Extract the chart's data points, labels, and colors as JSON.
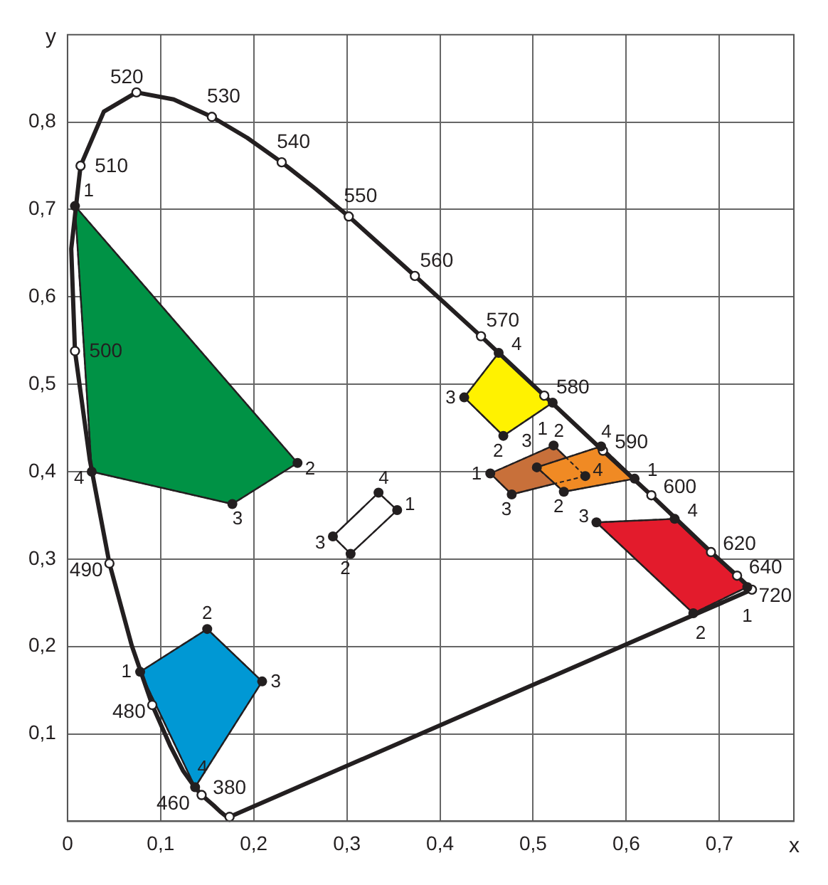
{
  "chart_data": {
    "type": "line",
    "xlabel": "x",
    "ylabel": "y",
    "xlim": [
      0,
      0.78
    ],
    "ylim": [
      0,
      0.9
    ],
    "xticks": [
      0,
      {
        "value": 0.1,
        "label": "0,1"
      },
      {
        "value": 0.2,
        "label": "0,2"
      },
      {
        "value": 0.3,
        "label": "0,3"
      },
      {
        "value": 0.4,
        "label": "0,4"
      },
      {
        "value": 0.5,
        "label": "0,5"
      },
      {
        "value": 0.6,
        "label": "0,6"
      },
      {
        "value": 0.7,
        "label": "0,7"
      }
    ],
    "yticks": [
      {
        "value": 0.1,
        "label": "0,1"
      },
      {
        "value": 0.2,
        "label": "0,2"
      },
      {
        "value": 0.3,
        "label": "0,3"
      },
      {
        "value": 0.4,
        "label": "0,4"
      },
      {
        "value": 0.5,
        "label": "0,5"
      },
      {
        "value": 0.6,
        "label": "0,6"
      },
      {
        "value": 0.7,
        "label": "0,7"
      },
      {
        "value": 0.8,
        "label": "0,8"
      }
    ],
    "grid": true,
    "legend": false,
    "series": [
      {
        "type": "area",
        "color": "#009245",
        "marker": "circle",
        "x": [
          0.008,
          0.247,
          0.177,
          0.026
        ],
        "values": [
          0.704,
          0.41,
          0.363,
          0.4
        ]
      },
      {
        "type": "area",
        "color": "#0098d4",
        "marker": "circle",
        "x": [
          0.078,
          0.15,
          0.209,
          0.137
        ],
        "values": [
          0.171,
          0.22,
          0.16,
          0.039
        ]
      },
      {
        "type": "area",
        "color": "#ffffff",
        "marker": "circle",
        "x": [
          0.354,
          0.304,
          0.285,
          0.334
        ],
        "values": [
          0.356,
          0.306,
          0.326,
          0.376
        ]
      },
      {
        "type": "area",
        "color": "#fff200",
        "marker": "circle",
        "x": [
          0.521,
          0.468,
          0.426,
          0.463
        ],
        "values": [
          0.479,
          0.441,
          0.485,
          0.536
        ]
      },
      {
        "type": "area",
        "color": "#c8703a",
        "marker": "circle",
        "x": [
          0.454,
          0.522,
          0.556,
          0.477
        ],
        "values": [
          0.398,
          0.43,
          0.395,
          0.374
        ]
      },
      {
        "type": "area",
        "color": "#f08a24",
        "marker": "circle",
        "x": [
          0.609,
          0.533,
          0.504,
          0.573
        ],
        "values": [
          0.392,
          0.377,
          0.405,
          0.429
        ]
      },
      {
        "type": "area",
        "color": "#e31b2c",
        "marker": "circle",
        "x": [
          0.73,
          0.672,
          0.568,
          0.652
        ],
        "values": [
          0.268,
          0.238,
          0.342,
          0.346
        ]
      },
      {
        "type": "line",
        "color": "#231f20",
        "marker": "none",
        "line_style": "solid",
        "x": [
          0.174,
          0.171,
          0.164,
          0.157,
          0.144,
          0.136,
          0.124,
          0.11,
          0.091,
          0.069,
          0.045,
          0.024,
          0.008,
          0.004,
          0.014,
          0.039,
          0.074,
          0.114,
          0.155,
          0.193,
          0.23,
          0.266,
          0.302,
          0.373,
          0.444,
          0.512,
          0.575,
          0.627,
          0.691,
          0.719,
          0.735
        ],
        "values": [
          0.005,
          0.005,
          0.011,
          0.018,
          0.03,
          0.04,
          0.058,
          0.087,
          0.133,
          0.201,
          0.295,
          0.413,
          0.538,
          0.655,
          0.75,
          0.812,
          0.834,
          0.826,
          0.806,
          0.782,
          0.754,
          0.724,
          0.692,
          0.624,
          0.555,
          0.487,
          0.424,
          0.373,
          0.308,
          0.281,
          0.265
        ]
      },
      {
        "type": "line",
        "color": "#231f20",
        "marker": "none",
        "line_style": "solid",
        "x": [
          0.735,
          0.174
        ],
        "values": [
          0.265,
          0.005
        ]
      },
      {
        "type": "scatter",
        "color": "#ffffff",
        "marker": "circle",
        "x": [
          0.174,
          0.144,
          0.091,
          0.045,
          0.008,
          0.014,
          0.074,
          0.155,
          0.23,
          0.302,
          0.373,
          0.444,
          0.512,
          0.575,
          0.627,
          0.691,
          0.719,
          0.735
        ],
        "values": [
          0.005,
          0.03,
          0.133,
          0.295,
          0.538,
          0.75,
          0.834,
          0.806,
          0.754,
          0.692,
          0.624,
          0.555,
          0.487,
          0.424,
          0.373,
          0.308,
          0.281,
          0.265
        ]
      }
    ],
    "annotations": [
      {
        "text": "380",
        "x": 0.174,
        "y": 0.005
      },
      {
        "text": "460",
        "x": 0.144,
        "y": 0.03
      },
      {
        "text": "480",
        "x": 0.091,
        "y": 0.133
      },
      {
        "text": "490",
        "x": 0.045,
        "y": 0.295
      },
      {
        "text": "500",
        "x": 0.008,
        "y": 0.538
      },
      {
        "text": "510",
        "x": 0.014,
        "y": 0.75
      },
      {
        "text": "520",
        "x": 0.074,
        "y": 0.834
      },
      {
        "text": "530",
        "x": 0.155,
        "y": 0.806
      },
      {
        "text": "540",
        "x": 0.23,
        "y": 0.754
      },
      {
        "text": "550",
        "x": 0.302,
        "y": 0.692
      },
      {
        "text": "560",
        "x": 0.373,
        "y": 0.624
      },
      {
        "text": "570",
        "x": 0.444,
        "y": 0.555
      },
      {
        "text": "580",
        "x": 0.512,
        "y": 0.487
      },
      {
        "text": "590",
        "x": 0.575,
        "y": 0.424
      },
      {
        "text": "600",
        "x": 0.627,
        "y": 0.373
      },
      {
        "text": "620",
        "x": 0.691,
        "y": 0.308
      },
      {
        "text": "640",
        "x": 0.719,
        "y": 0.281
      },
      {
        "text": "720",
        "x": 0.735,
        "y": 0.265
      },
      {
        "text": "1",
        "x": 0.008,
        "y": 0.704
      },
      {
        "text": "2",
        "x": 0.247,
        "y": 0.41
      },
      {
        "text": "3",
        "x": 0.177,
        "y": 0.363
      },
      {
        "text": "4",
        "x": 0.026,
        "y": 0.4
      },
      {
        "text": "1",
        "x": 0.078,
        "y": 0.171
      },
      {
        "text": "2",
        "x": 0.15,
        "y": 0.22
      },
      {
        "text": "3",
        "x": 0.209,
        "y": 0.16
      },
      {
        "text": "4",
        "x": 0.137,
        "y": 0.039
      },
      {
        "text": "1",
        "x": 0.354,
        "y": 0.356
      },
      {
        "text": "2",
        "x": 0.304,
        "y": 0.306
      },
      {
        "text": "3",
        "x": 0.285,
        "y": 0.326
      },
      {
        "text": "4",
        "x": 0.334,
        "y": 0.376
      },
      {
        "text": "1",
        "x": 0.521,
        "y": 0.479
      },
      {
        "text": "2",
        "x": 0.468,
        "y": 0.441
      },
      {
        "text": "3",
        "x": 0.426,
        "y": 0.485
      },
      {
        "text": "4",
        "x": 0.463,
        "y": 0.536
      },
      {
        "text": "1",
        "x": 0.454,
        "y": 0.398
      },
      {
        "text": "2",
        "x": 0.522,
        "y": 0.43
      },
      {
        "text": "4",
        "x": 0.556,
        "y": 0.395
      },
      {
        "text": "3",
        "x": 0.477,
        "y": 0.374
      },
      {
        "text": "1",
        "x": 0.609,
        "y": 0.392
      },
      {
        "text": "2",
        "x": 0.533,
        "y": 0.377
      },
      {
        "text": "3",
        "x": 0.504,
        "y": 0.405
      },
      {
        "text": "4",
        "x": 0.573,
        "y": 0.429
      },
      {
        "text": "1",
        "x": 0.73,
        "y": 0.268
      },
      {
        "text": "2",
        "x": 0.672,
        "y": 0.238
      },
      {
        "text": "3",
        "x": 0.568,
        "y": 0.342
      },
      {
        "text": "4",
        "x": 0.652,
        "y": 0.346
      }
    ]
  }
}
